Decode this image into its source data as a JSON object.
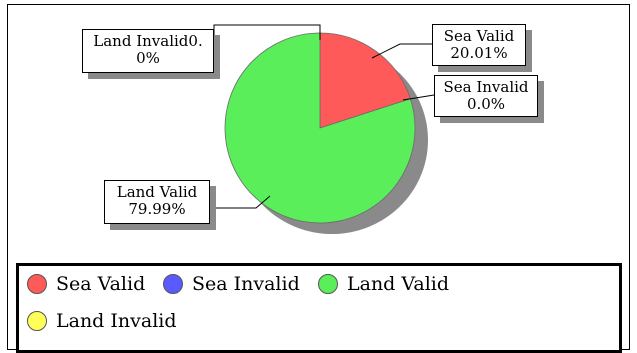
{
  "colors": {
    "sea_valid": "#ff5a5a",
    "sea_invalid": "#5a5aff",
    "land_valid": "#5aef5a",
    "land_invalid": "#ffff5a",
    "shadow": "#8a8a8a"
  },
  "chart_data": {
    "type": "pie",
    "title": "",
    "legend_position": "bottom",
    "slices": [
      {
        "name": "Sea Valid",
        "value": 20.01
      },
      {
        "name": "Sea Invalid",
        "value": 0.0
      },
      {
        "name": "Land Valid",
        "value": 79.99
      },
      {
        "name": "Land Invalid",
        "value": 0
      }
    ],
    "data_labels": {
      "sea_valid": {
        "line1": "Sea Valid",
        "line2": "20.01%"
      },
      "sea_invalid": {
        "line1": "Sea Invalid",
        "line2": "0.0%"
      },
      "land_valid": {
        "line1": "Land Valid",
        "line2": "79.99%"
      },
      "land_invalid": {
        "line1": "Land Invalid0.",
        "line2": "0%"
      }
    },
    "legend": [
      "Sea Valid",
      "Sea Invalid",
      "Land Valid",
      "Land Invalid"
    ]
  }
}
